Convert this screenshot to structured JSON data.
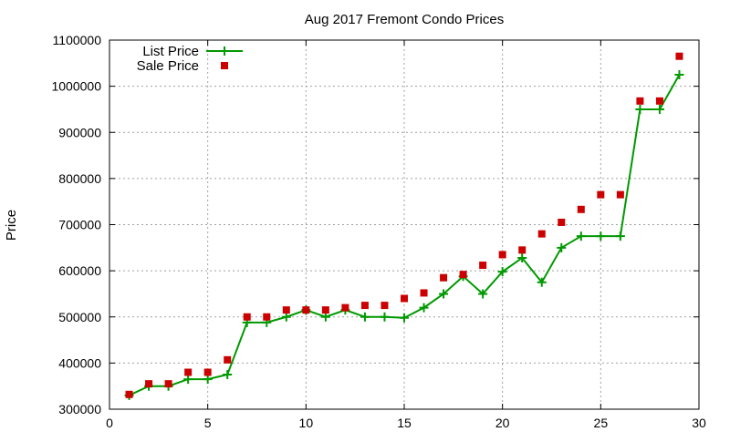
{
  "chart_data": {
    "type": "line",
    "title": "Aug 2017 Fremont Condo Prices",
    "xlabel": "",
    "ylabel": "Price",
    "xlim": [
      0,
      30
    ],
    "ylim": [
      300000,
      1100000
    ],
    "xticks": [
      0,
      5,
      10,
      15,
      20,
      25,
      30
    ],
    "yticks": [
      300000,
      400000,
      500000,
      600000,
      700000,
      800000,
      900000,
      1000000,
      1100000
    ],
    "grid": true,
    "legend_position": "top-left",
    "x": [
      1,
      2,
      3,
      4,
      5,
      6,
      7,
      8,
      9,
      10,
      11,
      12,
      13,
      14,
      15,
      16,
      17,
      18,
      19,
      20,
      21,
      22,
      23,
      24,
      25,
      26,
      27,
      28,
      29
    ],
    "series": [
      {
        "name": "List Price",
        "style": "line-with-plus-markers",
        "color": "#009900",
        "values": [
          330000,
          350000,
          350000,
          365000,
          365000,
          375000,
          488000,
          488000,
          500000,
          515000,
          500000,
          515000,
          500000,
          500000,
          498000,
          520000,
          550000,
          588000,
          550000,
          598000,
          628000,
          575000,
          650000,
          675000,
          675000,
          675000,
          950000,
          950000,
          1025000
        ]
      },
      {
        "name": "Sale Price",
        "style": "square-points",
        "color": "#cc0000",
        "values": [
          332000,
          355000,
          355000,
          380000,
          380000,
          407000,
          500000,
          500000,
          515000,
          515000,
          515000,
          520000,
          525000,
          525000,
          540000,
          552000,
          585000,
          592000,
          612000,
          635000,
          645000,
          680000,
          705000,
          733000,
          765000,
          765000,
          968000,
          968000,
          1065000
        ]
      }
    ]
  }
}
